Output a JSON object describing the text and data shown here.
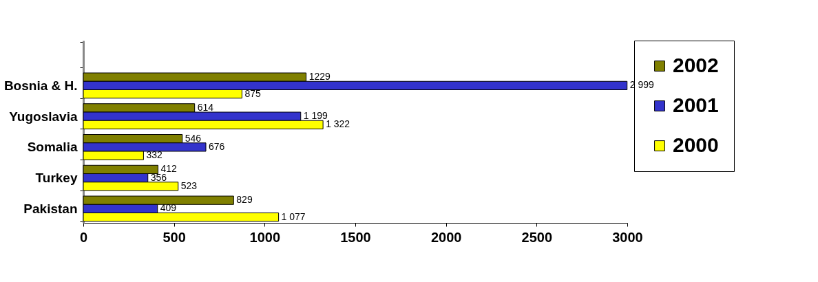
{
  "chart_data": {
    "type": "bar",
    "orientation": "horizontal",
    "categories": [
      null,
      "Bosnia & H.",
      "Yugoslavia",
      "Somalia",
      "Turkey",
      "Pakistan"
    ],
    "series": [
      {
        "name": "2002",
        "color": "#808000",
        "values": [
          null,
          1229,
          614,
          546,
          412,
          829
        ],
        "value_labels": [
          null,
          "1229",
          "614",
          "546",
          "412",
          "829"
        ]
      },
      {
        "name": "2001",
        "color": "#3333cc",
        "values": [
          null,
          2999,
          1199,
          676,
          356,
          409
        ],
        "value_labels": [
          null,
          "2 999",
          "1 199",
          "676",
          "356",
          "409"
        ]
      },
      {
        "name": "2000",
        "color": "#ffff00",
        "values": [
          null,
          875,
          1322,
          332,
          523,
          1077
        ],
        "value_labels": [
          null,
          "875",
          "1 322",
          "332",
          "523",
          "1 077"
        ]
      }
    ],
    "xlim": [
      0,
      3000
    ],
    "xticks": [
      0,
      500,
      1000,
      1500,
      2000,
      2500,
      3000
    ],
    "grid": false,
    "legend": "right"
  }
}
